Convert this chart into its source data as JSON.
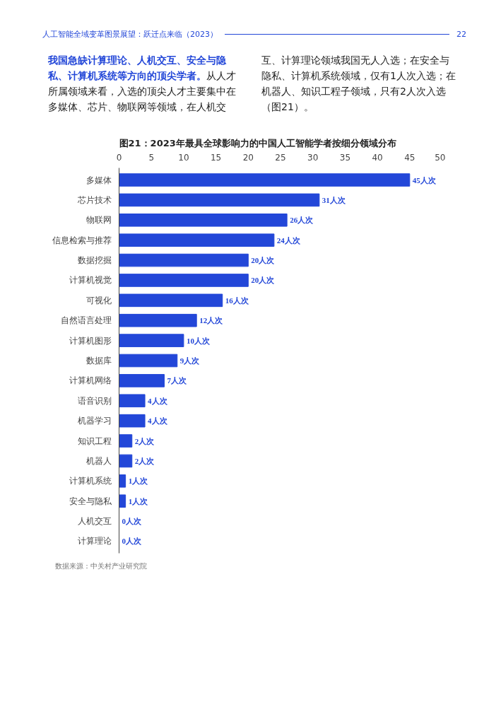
{
  "chart_data": {
    "type": "bar",
    "orientation": "horizontal",
    "title": "图21：2023年最具全球影响力的中国人工智能学者按细分领域分布",
    "categories": [
      "多媒体",
      "芯片技术",
      "物联网",
      "信息检索与推荐",
      "数据挖掘",
      "计算机视觉",
      "可视化",
      "自然语言处理",
      "计算机图形",
      "数据库",
      "计算机网络",
      "语音识别",
      "机器学习",
      "知识工程",
      "机器人",
      "计算机系统",
      "安全与隐私",
      "人机交互",
      "计算理论"
    ],
    "values": [
      45,
      31,
      26,
      24,
      20,
      20,
      16,
      12,
      10,
      9,
      7,
      4,
      4,
      2,
      2,
      1,
      1,
      0,
      0
    ],
    "value_labels": [
      "45人次",
      "31人次",
      "26人次",
      "24人次",
      "20人次",
      "20人次",
      "16人次",
      "12人次",
      "10人次",
      "9人次",
      "7人次",
      "4人次",
      "4人次",
      "2人次",
      "2人次",
      "1人次",
      "1人次",
      "0人次",
      "0人次"
    ],
    "color": "#2347d8",
    "xlim": [
      0,
      50
    ],
    "xticks": [
      0,
      5,
      10,
      15,
      20,
      25,
      30,
      35,
      40,
      45,
      50
    ],
    "grid": false,
    "annotations": [
      "人工智能全域变革图景展望：跃迁点来临（2023）",
      "22",
      "我国急缺计算理论、人机交互、安全与隐私、计算机系统等方向的顶尖学者。",
      "从人才所属领域来看，入选的顶尖人才主要集中在多媒体、芯片、物联网等领域，在人机交互、计算理论领域我国无人入选；在安全与隐私、计算机系统领域，仅有1人次入选；在机器人、知识工程子领域，只有2人次入选（图21）。",
      "数据来源：中关村产业研究院"
    ]
  }
}
